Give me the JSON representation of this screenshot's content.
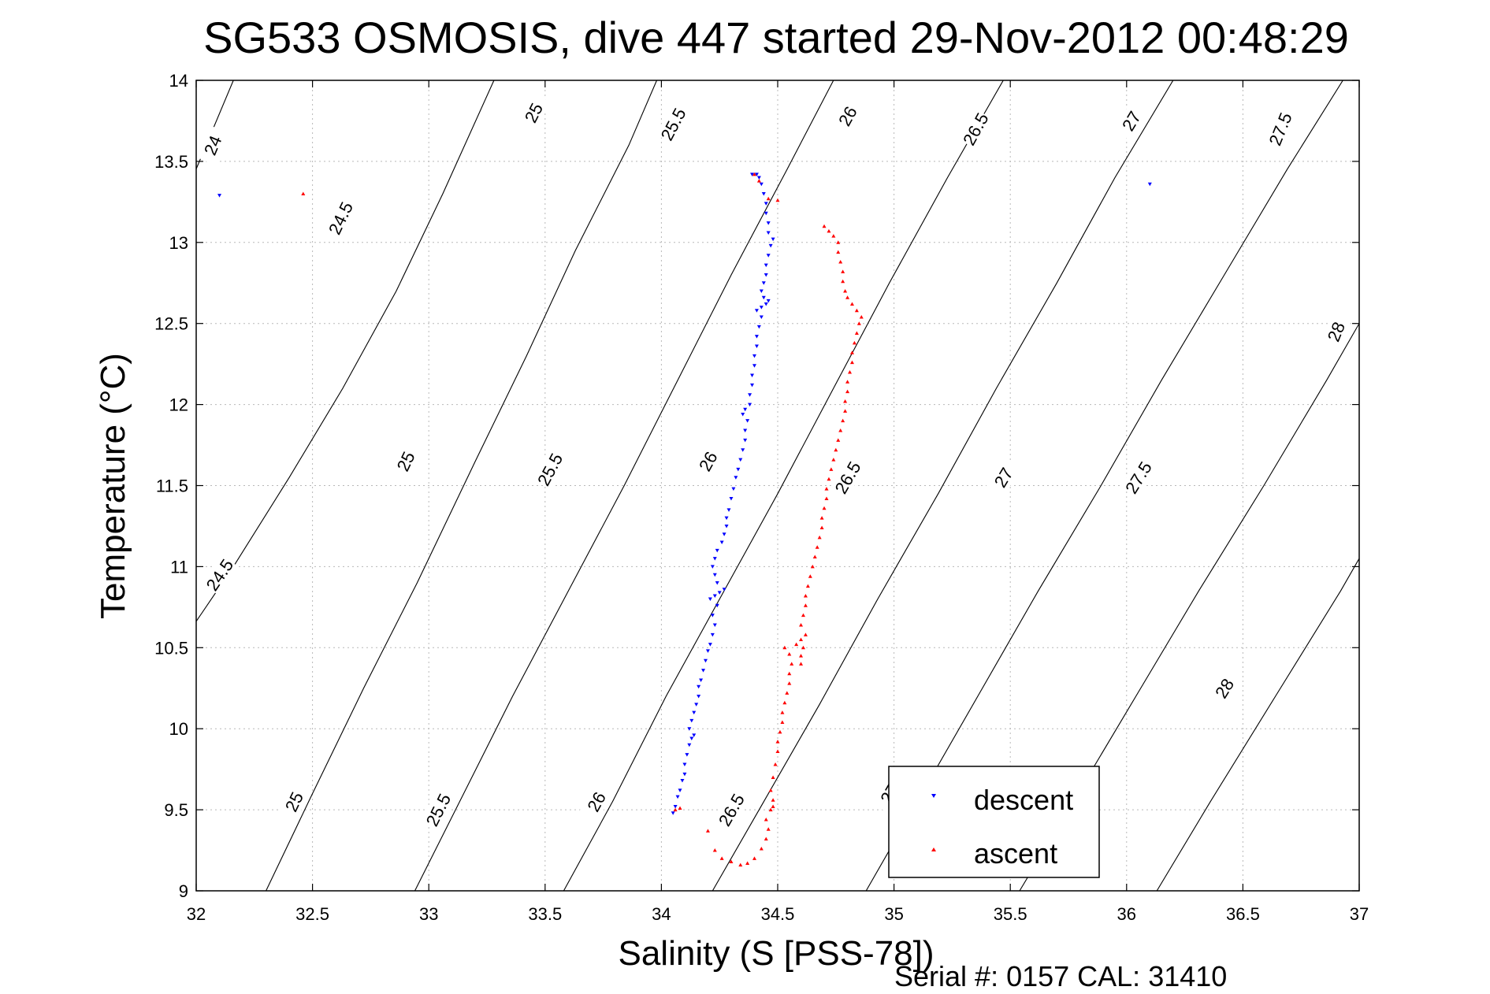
{
  "chart_data": {
    "type": "scatter",
    "title": "SG533 OSMOSIS, dive 447 started 29-Nov-2012 00:48:29",
    "xlabel": "Salinity (S [PSS-78])",
    "ylabel": "Temperature (°C)",
    "xlim": [
      32,
      37
    ],
    "ylim": [
      9,
      14
    ],
    "xticks": [
      "32",
      "32.5",
      "33",
      "33.5",
      "34",
      "34.5",
      "35",
      "35.5",
      "36",
      "36.5",
      "37"
    ],
    "yticks": [
      "9",
      "9.5",
      "10",
      "10.5",
      "11",
      "11.5",
      "12",
      "12.5",
      "13",
      "13.5",
      "14"
    ],
    "grid": true,
    "legend_position": "bottom-right",
    "density_contours": [
      {
        "sigma": "24",
        "points": [
          [
            31.97,
            13.35
          ],
          [
            32.16,
            14.0
          ]
        ],
        "labels": [
          {
            "x": 32.07,
            "y": 13.6
          }
        ]
      },
      {
        "sigma": "24.5",
        "points": [
          [
            31.98,
            10.62
          ],
          [
            32.16,
            11.0
          ],
          [
            32.4,
            11.55
          ],
          [
            32.63,
            12.1
          ],
          [
            32.86,
            12.7
          ],
          [
            33.06,
            13.3
          ],
          [
            33.28,
            14.0
          ]
        ],
        "labels": [
          {
            "x": 32.1,
            "y": 10.95
          },
          {
            "x": 32.62,
            "y": 13.15
          }
        ]
      },
      {
        "sigma": "25",
        "points": [
          [
            32.3,
            9.0
          ],
          [
            32.5,
            9.6
          ],
          [
            32.72,
            10.25
          ],
          [
            32.95,
            10.9
          ],
          [
            33.2,
            11.65
          ],
          [
            33.42,
            12.3
          ],
          [
            33.63,
            12.95
          ],
          [
            33.86,
            13.6
          ],
          [
            33.98,
            14.0
          ]
        ],
        "labels": [
          {
            "x": 32.42,
            "y": 9.55
          },
          {
            "x": 32.9,
            "y": 11.65
          },
          {
            "x": 33.45,
            "y": 13.8
          }
        ]
      },
      {
        "sigma": "25.5",
        "points": [
          [
            32.94,
            9.0
          ],
          [
            33.15,
            9.6
          ],
          [
            33.36,
            10.2
          ],
          [
            33.6,
            10.85
          ],
          [
            33.84,
            11.5
          ],
          [
            34.07,
            12.15
          ],
          [
            34.3,
            12.8
          ],
          [
            34.54,
            13.45
          ],
          [
            34.74,
            14.0
          ]
        ],
        "labels": [
          {
            "x": 33.04,
            "y": 9.5
          },
          {
            "x": 33.52,
            "y": 11.6
          },
          {
            "x": 34.05,
            "y": 13.73
          }
        ]
      },
      {
        "sigma": "26",
        "points": [
          [
            33.58,
            9.0
          ],
          [
            33.79,
            9.55
          ],
          [
            34.02,
            10.2
          ],
          [
            34.25,
            10.8
          ],
          [
            34.5,
            11.45
          ],
          [
            34.74,
            12.1
          ],
          [
            34.98,
            12.75
          ],
          [
            35.23,
            13.4
          ],
          [
            35.47,
            14.0
          ]
        ],
        "labels": [
          {
            "x": 33.72,
            "y": 9.55
          },
          {
            "x": 34.2,
            "y": 11.65
          },
          {
            "x": 34.8,
            "y": 13.78
          }
        ]
      },
      {
        "sigma": "26.5",
        "points": [
          [
            34.22,
            9.0
          ],
          [
            34.44,
            9.55
          ],
          [
            34.68,
            10.15
          ],
          [
            34.93,
            10.8
          ],
          [
            35.19,
            11.45
          ],
          [
            35.44,
            12.1
          ],
          [
            35.7,
            12.75
          ],
          [
            35.95,
            13.4
          ],
          [
            36.2,
            14.0
          ]
        ],
        "labels": [
          {
            "x": 34.3,
            "y": 9.5
          },
          {
            "x": 34.8,
            "y": 11.55
          },
          {
            "x": 35.35,
            "y": 13.7
          }
        ]
      },
      {
        "sigma": "27",
        "points": [
          [
            34.88,
            9.0
          ],
          [
            35.1,
            9.55
          ],
          [
            35.36,
            10.2
          ],
          [
            35.62,
            10.85
          ],
          [
            35.89,
            11.5
          ],
          [
            36.15,
            12.15
          ],
          [
            36.42,
            12.8
          ],
          [
            36.69,
            13.45
          ],
          [
            36.93,
            14.0
          ]
        ],
        "labels": [
          {
            "x": 34.98,
            "y": 9.6
          },
          {
            "x": 35.47,
            "y": 11.55
          },
          {
            "x": 36.02,
            "y": 13.75
          }
        ]
      },
      {
        "sigma": "27.5",
        "points": [
          [
            35.54,
            9.0
          ],
          [
            35.77,
            9.55
          ],
          [
            36.04,
            10.2
          ],
          [
            36.31,
            10.85
          ],
          [
            36.59,
            11.5
          ],
          [
            36.86,
            12.15
          ],
          [
            37.02,
            12.55
          ]
        ],
        "labels": [
          {
            "x": 36.05,
            "y": 11.55
          },
          {
            "x": 36.66,
            "y": 13.7
          }
        ]
      },
      {
        "sigma": "28",
        "points": [
          [
            36.13,
            9.0
          ],
          [
            36.36,
            9.55
          ],
          [
            36.64,
            10.2
          ],
          [
            36.92,
            10.85
          ],
          [
            37.02,
            11.1
          ]
        ],
        "labels": [
          {
            "x": 36.42,
            "y": 10.25
          },
          {
            "x": 36.9,
            "y": 12.45
          }
        ]
      }
    ],
    "series": [
      {
        "name": "descent",
        "color": "#0000ff",
        "marker": "triangle-down",
        "points": [
          [
            34.05,
            9.48
          ],
          [
            34.06,
            9.52
          ],
          [
            34.07,
            9.58
          ],
          [
            34.08,
            9.62
          ],
          [
            34.09,
            9.68
          ],
          [
            34.1,
            9.72
          ],
          [
            34.1,
            9.78
          ],
          [
            34.11,
            9.84
          ],
          [
            34.12,
            9.9
          ],
          [
            34.13,
            9.94
          ],
          [
            34.14,
            9.96
          ],
          [
            34.12,
            10.0
          ],
          [
            34.13,
            10.05
          ],
          [
            34.14,
            10.1
          ],
          [
            34.15,
            10.15
          ],
          [
            34.16,
            10.2
          ],
          [
            34.16,
            10.26
          ],
          [
            34.17,
            10.3
          ],
          [
            34.18,
            10.36
          ],
          [
            34.19,
            10.42
          ],
          [
            34.2,
            10.48
          ],
          [
            34.21,
            10.52
          ],
          [
            34.22,
            10.58
          ],
          [
            34.23,
            10.64
          ],
          [
            34.22,
            10.7
          ],
          [
            34.24,
            10.76
          ],
          [
            34.21,
            10.8
          ],
          [
            34.23,
            10.82
          ],
          [
            34.25,
            10.84
          ],
          [
            34.27,
            10.86
          ],
          [
            34.24,
            10.9
          ],
          [
            34.23,
            10.95
          ],
          [
            34.22,
            11.0
          ],
          [
            34.23,
            11.05
          ],
          [
            34.24,
            11.1
          ],
          [
            34.26,
            11.15
          ],
          [
            34.27,
            11.2
          ],
          [
            34.28,
            11.25
          ],
          [
            34.28,
            11.3
          ],
          [
            34.29,
            11.35
          ],
          [
            34.3,
            11.42
          ],
          [
            34.31,
            11.48
          ],
          [
            34.32,
            11.55
          ],
          [
            34.33,
            11.6
          ],
          [
            34.34,
            11.66
          ],
          [
            34.35,
            11.72
          ],
          [
            34.36,
            11.78
          ],
          [
            34.36,
            11.84
          ],
          [
            34.37,
            11.9
          ],
          [
            34.35,
            11.94
          ],
          [
            34.36,
            11.97
          ],
          [
            34.38,
            12.0
          ],
          [
            34.38,
            12.06
          ],
          [
            34.39,
            12.12
          ],
          [
            34.39,
            12.18
          ],
          [
            34.4,
            12.24
          ],
          [
            34.4,
            12.3
          ],
          [
            34.41,
            12.36
          ],
          [
            34.41,
            12.42
          ],
          [
            34.42,
            12.48
          ],
          [
            34.43,
            12.54
          ],
          [
            34.41,
            12.58
          ],
          [
            34.43,
            12.6
          ],
          [
            34.45,
            12.62
          ],
          [
            34.46,
            12.64
          ],
          [
            34.44,
            12.66
          ],
          [
            34.43,
            12.7
          ],
          [
            34.44,
            12.75
          ],
          [
            34.45,
            12.8
          ],
          [
            34.45,
            12.86
          ],
          [
            34.46,
            12.92
          ],
          [
            34.47,
            12.98
          ],
          [
            34.48,
            13.02
          ],
          [
            34.46,
            13.06
          ],
          [
            34.46,
            13.12
          ],
          [
            34.45,
            13.18
          ],
          [
            34.45,
            13.24
          ],
          [
            34.44,
            13.3
          ],
          [
            34.43,
            13.36
          ],
          [
            34.42,
            13.4
          ],
          [
            34.41,
            13.42
          ],
          [
            34.39,
            13.42
          ],
          [
            32.1,
            13.29
          ],
          [
            36.1,
            13.36
          ]
        ]
      },
      {
        "name": "ascent",
        "color": "#ff0000",
        "marker": "triangle-up",
        "points": [
          [
            34.06,
            9.5
          ],
          [
            34.08,
            9.51
          ],
          [
            34.2,
            9.37
          ],
          [
            34.23,
            9.25
          ],
          [
            34.26,
            9.2
          ],
          [
            34.3,
            9.18
          ],
          [
            34.34,
            9.16
          ],
          [
            34.37,
            9.17
          ],
          [
            34.4,
            9.2
          ],
          [
            34.43,
            9.26
          ],
          [
            34.45,
            9.32
          ],
          [
            34.46,
            9.38
          ],
          [
            34.45,
            9.44
          ],
          [
            34.47,
            9.5
          ],
          [
            34.48,
            9.52
          ],
          [
            34.48,
            9.56
          ],
          [
            34.47,
            9.62
          ],
          [
            34.48,
            9.7
          ],
          [
            34.49,
            9.78
          ],
          [
            34.5,
            9.86
          ],
          [
            34.5,
            9.92
          ],
          [
            34.51,
            9.98
          ],
          [
            34.52,
            10.04
          ],
          [
            34.52,
            10.1
          ],
          [
            34.53,
            10.16
          ],
          [
            34.54,
            10.22
          ],
          [
            34.55,
            10.28
          ],
          [
            34.55,
            10.34
          ],
          [
            34.56,
            10.4
          ],
          [
            34.55,
            10.46
          ],
          [
            34.53,
            10.5
          ],
          [
            34.58,
            10.52
          ],
          [
            34.6,
            10.55
          ],
          [
            34.62,
            10.58
          ],
          [
            34.61,
            10.5
          ],
          [
            34.6,
            10.45
          ],
          [
            34.6,
            10.4
          ],
          [
            34.6,
            10.64
          ],
          [
            34.61,
            10.7
          ],
          [
            34.62,
            10.76
          ],
          [
            34.62,
            10.82
          ],
          [
            34.63,
            10.88
          ],
          [
            34.64,
            10.94
          ],
          [
            34.65,
            11.0
          ],
          [
            34.66,
            11.06
          ],
          [
            34.67,
            11.12
          ],
          [
            34.68,
            11.18
          ],
          [
            34.69,
            11.24
          ],
          [
            34.69,
            11.3
          ],
          [
            34.7,
            11.36
          ],
          [
            34.71,
            11.42
          ],
          [
            34.71,
            11.48
          ],
          [
            34.72,
            11.54
          ],
          [
            34.73,
            11.6
          ],
          [
            34.74,
            11.66
          ],
          [
            34.75,
            11.72
          ],
          [
            34.76,
            11.78
          ],
          [
            34.77,
            11.84
          ],
          [
            34.78,
            11.9
          ],
          [
            34.79,
            11.96
          ],
          [
            34.79,
            12.02
          ],
          [
            34.8,
            12.08
          ],
          [
            34.8,
            12.14
          ],
          [
            34.81,
            12.2
          ],
          [
            34.82,
            12.26
          ],
          [
            34.82,
            12.32
          ],
          [
            34.83,
            12.38
          ],
          [
            34.84,
            12.44
          ],
          [
            34.85,
            12.5
          ],
          [
            34.86,
            12.54
          ],
          [
            34.84,
            12.58
          ],
          [
            34.82,
            12.62
          ],
          [
            34.8,
            12.66
          ],
          [
            34.79,
            12.7
          ],
          [
            34.78,
            12.76
          ],
          [
            34.78,
            12.82
          ],
          [
            34.77,
            12.88
          ],
          [
            34.76,
            12.94
          ],
          [
            34.76,
            13.0
          ],
          [
            34.74,
            13.04
          ],
          [
            34.72,
            13.07
          ],
          [
            34.7,
            13.1
          ],
          [
            34.4,
            13.42
          ],
          [
            34.42,
            13.38
          ],
          [
            34.46,
            13.27
          ],
          [
            34.5,
            13.26
          ],
          [
            32.46,
            13.3
          ]
        ]
      }
    ]
  },
  "footer": {
    "serial": "Serial #: 0157  CAL: 31410"
  }
}
